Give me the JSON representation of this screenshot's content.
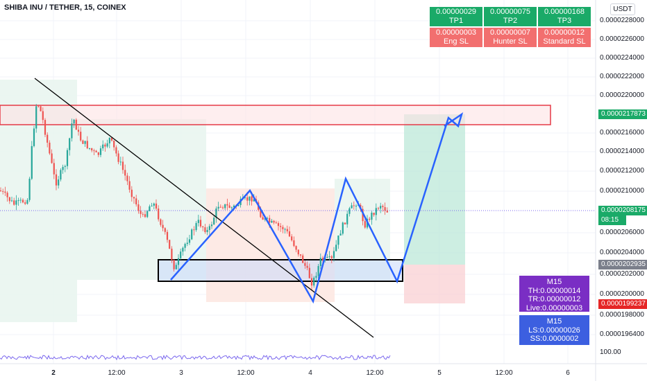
{
  "header": {
    "symbol": "SHIBA INU / TETHER, 15, COINEX",
    "currency": "USDT"
  },
  "y_axis": {
    "ticks": [
      "0.0000228000",
      "0.0000226000",
      "0.0000224000",
      "0.0000222000",
      "0.0000220000",
      "0.0000216000",
      "0.0000214000",
      "0.0000212000",
      "0.0000210000",
      "0.0000206000",
      "0.0000204000",
      "0.0000202000",
      "0.0000200000",
      "0.0000198000",
      "0.0000196400",
      "100.00"
    ]
  },
  "x_axis": {
    "ticks": [
      {
        "label": "2",
        "bold": true
      },
      {
        "label": "12:00",
        "bold": false
      },
      {
        "label": "3",
        "bold": false
      },
      {
        "label": "12:00",
        "bold": false
      },
      {
        "label": "4",
        "bold": false
      },
      {
        "label": "12:00",
        "bold": false
      },
      {
        "label": "5",
        "bold": false
      },
      {
        "label": "12:00",
        "bold": false
      },
      {
        "label": "6",
        "bold": false
      }
    ]
  },
  "price_labels": [
    {
      "value": "0.0000217873",
      "color": "#1aaa68"
    },
    {
      "value": "0.0000208175",
      "color": "#1aaa68"
    },
    {
      "value": "08:15",
      "color": "#1aaa68"
    },
    {
      "value": "0.0000202935",
      "color": "#7b7f8b"
    },
    {
      "value": "0.0000199237",
      "color": "#e52626"
    }
  ],
  "tp_table": {
    "tp": [
      {
        "value": "0.00000029",
        "label": "TP1"
      },
      {
        "value": "0.00000075",
        "label": "TP2"
      },
      {
        "value": "0.00000168",
        "label": "TP3"
      }
    ],
    "sl": [
      {
        "value": "0.00000003",
        "label": "Eng SL"
      },
      {
        "value": "0.00000007",
        "label": "Hunter SL"
      },
      {
        "value": "0.00000012",
        "label": "Standard SL"
      }
    ]
  },
  "info_box_1": {
    "title": "M15",
    "th": "TH:0.00000014",
    "tr": "TR:0.00000012",
    "live": "Live:0.00000003"
  },
  "info_box_2": {
    "title": "M15",
    "ls": "LS:0.00000026",
    "ss": "SS:0.0000002"
  },
  "colors": {
    "up": "#26a69a",
    "down": "#ef5350",
    "pattern": "#2962ff",
    "trend": "#000000",
    "resistance": "#e53946"
  }
}
